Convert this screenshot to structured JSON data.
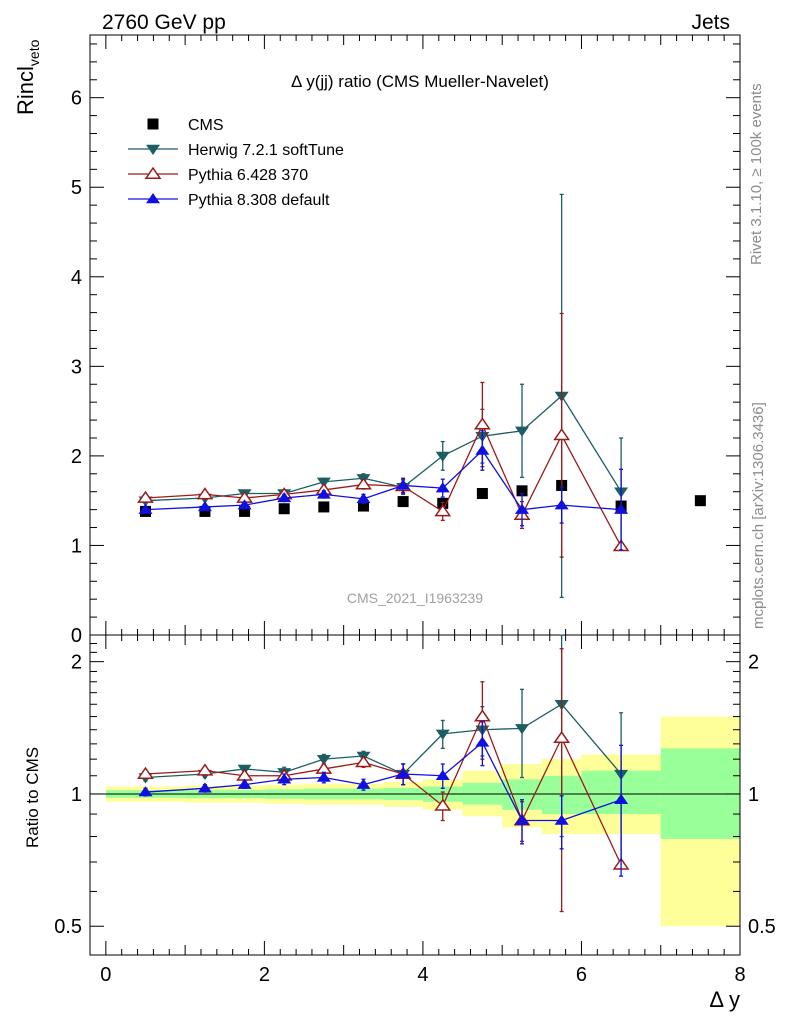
{
  "header": {
    "left": "2760 GeV pp",
    "right": "Jets"
  },
  "side_labels": {
    "rivet": "Rivet 3.1.10, ≥ 100k events",
    "mcplots": "mcplots.cern.ch [arXiv:1306.3436]"
  },
  "chart_data": [
    {
      "type": "scatter",
      "title": "Δ y(jj) ratio (CMS Mueller-Navelet)",
      "ylabel": "Rincl",
      "ylabel_sub": "veto",
      "watermark": "CMS_2021_I1963239",
      "xlim": [
        -0.2,
        8.0
      ],
      "ylim": [
        0,
        6.7
      ],
      "yticks": [
        0,
        1,
        2,
        3,
        4,
        5,
        6
      ],
      "legend_position": "top-left",
      "series": [
        {
          "name": "CMS",
          "color": "#000000",
          "marker": "square",
          "x": [
            0.5,
            1.25,
            1.75,
            2.25,
            2.75,
            3.25,
            3.75,
            4.25,
            4.75,
            5.25,
            5.75,
            6.5,
            7.5
          ],
          "y": [
            1.38,
            1.38,
            1.38,
            1.41,
            1.43,
            1.44,
            1.49,
            1.47,
            1.58,
            1.61,
            1.67,
            1.44,
            1.5
          ],
          "err": [
            0,
            0,
            0,
            0,
            0,
            0,
            0,
            0,
            0,
            0,
            0,
            0,
            0
          ]
        },
        {
          "name": "Herwig 7.2.1 softTune",
          "color": "#1b5e63",
          "marker": "triangle-down",
          "x": [
            0.5,
            1.25,
            1.75,
            2.25,
            2.75,
            3.25,
            3.75,
            4.25,
            4.75,
            5.25,
            5.75,
            6.5
          ],
          "y": [
            1.5,
            1.53,
            1.58,
            1.58,
            1.71,
            1.75,
            1.65,
            2.0,
            2.22,
            2.28,
            2.67,
            1.6
          ],
          "err": [
            0.03,
            0.03,
            0.03,
            0.04,
            0.04,
            0.05,
            0.08,
            0.16,
            0.3,
            0.52,
            2.25,
            0.6
          ]
        },
        {
          "name": "Pythia 6.428 370",
          "color": "#9b1b1b",
          "marker": "triangle-open",
          "x": [
            0.5,
            1.25,
            1.75,
            2.25,
            2.75,
            3.25,
            3.75,
            4.25,
            4.75,
            5.25,
            5.75,
            6.5
          ],
          "y": [
            1.53,
            1.57,
            1.53,
            1.57,
            1.62,
            1.68,
            1.66,
            1.38,
            2.35,
            1.34,
            2.23,
            0.99
          ],
          "err": [
            0.03,
            0.03,
            0.03,
            0.04,
            0.04,
            0.05,
            0.08,
            0.1,
            0.47,
            0.15,
            1.36,
            0.0
          ]
        },
        {
          "name": "Pythia 8.308 default",
          "color": "#1010e0",
          "marker": "triangle-up",
          "x": [
            0.5,
            1.25,
            1.75,
            2.25,
            2.75,
            3.25,
            3.75,
            4.25,
            4.75,
            5.25,
            5.75,
            6.5
          ],
          "y": [
            1.4,
            1.43,
            1.45,
            1.53,
            1.57,
            1.52,
            1.67,
            1.64,
            2.06,
            1.4,
            1.45,
            1.4
          ],
          "err": [
            0.03,
            0.03,
            0.03,
            0.04,
            0.04,
            0.05,
            0.08,
            0.1,
            0.22,
            0.18,
            0.2,
            0.45
          ]
        }
      ]
    },
    {
      "type": "scatter",
      "ylabel": "Ratio to CMS",
      "xlabel": "Δ y",
      "xlim": [
        -0.2,
        8.0
      ],
      "xticks": [
        0,
        2,
        4,
        6,
        8
      ],
      "ylim": [
        0.43,
        2.3
      ],
      "ylog": true,
      "yticks": [
        0.5,
        1,
        2
      ],
      "bands": [
        {
          "x0": 0.0,
          "x1": 1.0,
          "yellow": [
            0.96,
            1.04
          ],
          "green": [
            0.98,
            1.02
          ]
        },
        {
          "x0": 1.0,
          "x1": 2.0,
          "yellow": [
            0.955,
            1.045
          ],
          "green": [
            0.978,
            1.022
          ]
        },
        {
          "x0": 2.0,
          "x1": 2.5,
          "yellow": [
            0.95,
            1.05
          ],
          "green": [
            0.975,
            1.025
          ]
        },
        {
          "x0": 2.5,
          "x1": 3.5,
          "yellow": [
            0.945,
            1.055
          ],
          "green": [
            0.972,
            1.028
          ]
        },
        {
          "x0": 3.5,
          "x1": 4.0,
          "yellow": [
            0.935,
            1.065
          ],
          "green": [
            0.968,
            1.032
          ]
        },
        {
          "x0": 4.0,
          "x1": 4.5,
          "yellow": [
            0.92,
            1.08
          ],
          "green": [
            0.96,
            1.04
          ]
        },
        {
          "x0": 4.5,
          "x1": 5.0,
          "yellow": [
            0.89,
            1.13
          ],
          "green": [
            0.945,
            1.06
          ]
        },
        {
          "x0": 5.0,
          "x1": 5.5,
          "yellow": [
            0.84,
            1.17
          ],
          "green": [
            0.92,
            1.08
          ]
        },
        {
          "x0": 5.5,
          "x1": 6.0,
          "yellow": [
            0.81,
            1.2
          ],
          "green": [
            0.9,
            1.1
          ]
        },
        {
          "x0": 6.0,
          "x1": 7.0,
          "yellow": [
            0.81,
            1.23
          ],
          "green": [
            0.9,
            1.13
          ]
        },
        {
          "x0": 7.0,
          "x1": 8.0,
          "yellow": [
            0.5,
            1.5
          ],
          "green": [
            0.79,
            1.27
          ]
        }
      ],
      "series": [
        {
          "name": "Herwig 7.2.1 softTune",
          "color": "#1b5e63",
          "marker": "triangle-down",
          "x": [
            0.5,
            1.25,
            1.75,
            2.25,
            2.75,
            3.25,
            3.75,
            4.25,
            4.75,
            5.25,
            5.75,
            6.5
          ],
          "y": [
            1.09,
            1.11,
            1.14,
            1.12,
            1.2,
            1.22,
            1.11,
            1.37,
            1.4,
            1.41,
            1.6,
            1.11
          ],
          "err": [
            0.02,
            0.02,
            0.02,
            0.03,
            0.03,
            0.03,
            0.06,
            0.1,
            0.18,
            0.32,
            0.8,
            0.42
          ]
        },
        {
          "name": "Pythia 6.428 370",
          "color": "#9b1b1b",
          "marker": "triangle-open",
          "x": [
            0.5,
            1.25,
            1.75,
            2.25,
            2.75,
            3.25,
            3.75,
            4.25,
            4.75,
            5.25,
            5.75,
            6.5
          ],
          "y": [
            1.11,
            1.13,
            1.1,
            1.1,
            1.14,
            1.18,
            1.11,
            0.94,
            1.5,
            0.87,
            1.34,
            0.69
          ],
          "err": [
            0.02,
            0.02,
            0.02,
            0.03,
            0.03,
            0.03,
            0.06,
            0.07,
            0.3,
            0.09,
            0.8,
            0.0
          ]
        },
        {
          "name": "Pythia 8.308 default",
          "color": "#1010e0",
          "marker": "triangle-up",
          "x": [
            0.5,
            1.25,
            1.75,
            2.25,
            2.75,
            3.25,
            3.75,
            4.25,
            4.75,
            5.25,
            5.75,
            6.5
          ],
          "y": [
            1.01,
            1.03,
            1.05,
            1.08,
            1.09,
            1.05,
            1.11,
            1.1,
            1.31,
            0.87,
            0.87,
            0.97
          ],
          "err": [
            0.02,
            0.02,
            0.02,
            0.03,
            0.03,
            0.03,
            0.06,
            0.07,
            0.15,
            0.1,
            0.12,
            0.32
          ]
        }
      ]
    }
  ]
}
